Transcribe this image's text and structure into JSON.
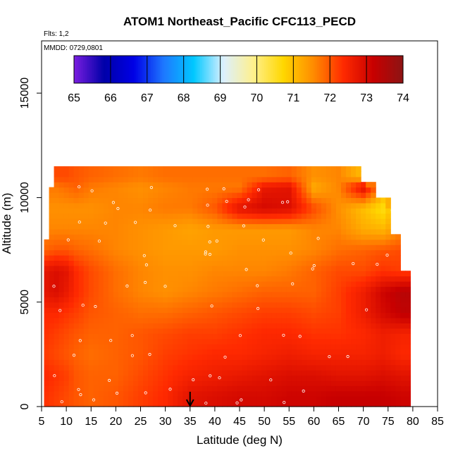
{
  "chart_data": {
    "type": "heatmap",
    "title": "ATOM1 Northeast_Pacific CFC113_PECD",
    "flights_label": "Flts: 1,2",
    "dates_label": "MMDD: 0729,0801",
    "xlabel": "Latitude (deg N)",
    "ylabel": "Altitude (m)",
    "xlim": [
      5,
      85
    ],
    "ylim": [
      0,
      17500
    ],
    "x_ticks": [
      "5",
      "10",
      "15",
      "20",
      "25",
      "30",
      "35",
      "40",
      "45",
      "50",
      "55",
      "60",
      "65",
      "70",
      "75",
      "80",
      "85"
    ],
    "y_ticks": [
      "0",
      "5000",
      "10000",
      "15000"
    ],
    "colorbar": {
      "min": 65,
      "max": 74,
      "ticks": [
        "65",
        "66",
        "67",
        "68",
        "69",
        "70",
        "71",
        "72",
        "73",
        "74"
      ],
      "colors": [
        "#7a1ee0",
        "#0000a8",
        "#0000e6",
        "#1e78ff",
        "#00c8ff",
        "#dcf0ff",
        "#fff08c",
        "#ffd700",
        "#ff8c00",
        "#ff2a00",
        "#c80000",
        "#8c1414"
      ]
    },
    "marker": {
      "latitude": 35,
      "label": "arrow"
    },
    "field": {
      "latitudes": [
        6,
        8,
        10,
        12,
        15,
        20,
        25,
        30,
        35,
        40,
        45,
        50,
        55,
        60,
        65,
        70,
        74,
        78
      ],
      "altitudes": [
        500,
        1500,
        2500,
        3500,
        4500,
        5500,
        6500,
        7500,
        8500,
        9500,
        10500,
        11000
      ],
      "values": [
        [
          72.3,
          72.2,
          72.1,
          72.0,
          71.9,
          72.0,
          72.2,
          72.4,
          72.8,
          72.9,
          73.0,
          73.0,
          73.1,
          73.1,
          73.2,
          73.2,
          73.2,
          73.1
        ],
        [
          72.4,
          72.3,
          72.2,
          72.0,
          71.9,
          71.9,
          72.1,
          72.3,
          72.5,
          72.6,
          72.7,
          72.8,
          72.9,
          72.9,
          72.8,
          72.8,
          72.9,
          72.8
        ],
        [
          72.2,
          72.1,
          72.0,
          71.9,
          71.8,
          71.9,
          72.0,
          72.2,
          72.3,
          72.4,
          72.4,
          72.5,
          72.6,
          72.5,
          72.5,
          72.5,
          72.6,
          72.4
        ],
        [
          72.3,
          72.2,
          72.1,
          72.0,
          71.9,
          71.9,
          72.0,
          72.1,
          72.2,
          72.2,
          72.3,
          72.4,
          72.4,
          72.3,
          72.3,
          72.4,
          72.6,
          72.5
        ],
        [
          72.4,
          72.4,
          72.3,
          72.2,
          72.0,
          71.9,
          71.8,
          71.8,
          71.9,
          72.0,
          72.1,
          72.2,
          72.2,
          72.1,
          72.2,
          72.6,
          73.0,
          73.3
        ],
        [
          72.8,
          72.9,
          72.7,
          72.4,
          72.1,
          71.8,
          71.6,
          71.5,
          71.6,
          71.7,
          71.8,
          71.9,
          71.9,
          71.9,
          72.2,
          72.6,
          73.1,
          73.4
        ],
        [
          72.8,
          72.9,
          72.8,
          72.4,
          72.1,
          71.8,
          71.6,
          71.5,
          71.5,
          71.6,
          71.6,
          71.6,
          71.7,
          71.9,
          72.1,
          72.1,
          72.3,
          72.2
        ],
        [
          71.9,
          72.0,
          72.0,
          71.9,
          71.8,
          71.6,
          71.5,
          71.4,
          71.4,
          71.4,
          71.5,
          71.5,
          71.5,
          71.6,
          71.8,
          71.9,
          72.0,
          72.1
        ],
        [
          71.6,
          71.6,
          71.6,
          71.6,
          71.6,
          71.6,
          71.5,
          71.4,
          71.3,
          71.4,
          71.4,
          71.4,
          71.4,
          71.6,
          71.6,
          71.2,
          71.1,
          71.6
        ],
        [
          71.5,
          71.5,
          71.5,
          71.5,
          71.5,
          71.6,
          71.6,
          71.7,
          71.7,
          72.0,
          72.8,
          73.0,
          72.9,
          72.1,
          71.5,
          71.0,
          70.6,
          71.5
        ],
        [
          71.7,
          71.7,
          71.8,
          71.9,
          71.7,
          71.6,
          71.5,
          71.6,
          71.7,
          71.7,
          71.7,
          72.7,
          72.8,
          71.2,
          71.6,
          72.9,
          71.4,
          0
        ],
        [
          72.1,
          72.1,
          72.1,
          72.0,
          71.9,
          71.8,
          71.7,
          71.8,
          71.8,
          71.8,
          71.8,
          71.8,
          71.9,
          71.5,
          71.6,
          71.0,
          0,
          0
        ]
      ]
    }
  }
}
